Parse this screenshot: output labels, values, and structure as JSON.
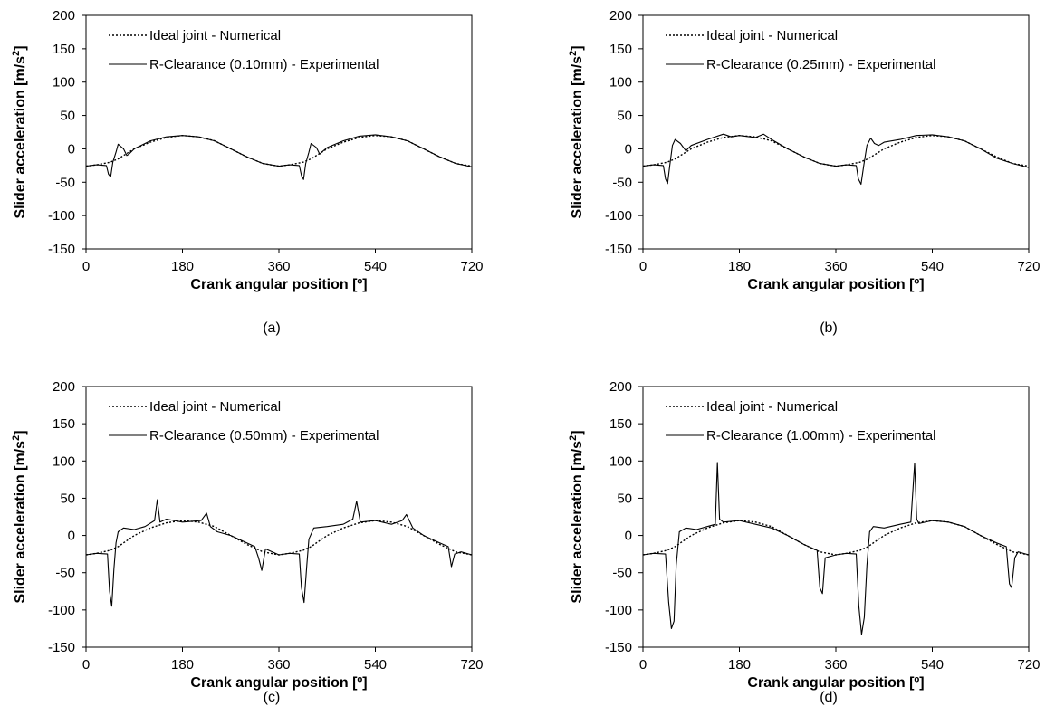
{
  "figure": {
    "panels": [
      {
        "caption": "(a)",
        "clearance_label": "R-Clearance (0.10mm) - Experimental"
      },
      {
        "caption": "(b)",
        "clearance_label": "R-Clearance (0.25mm) - Experimental"
      },
      {
        "caption": "(c)",
        "clearance_label": "R-Clearance (0.50mm) - Experimental"
      },
      {
        "caption": "(d)",
        "clearance_label": "R-Clearance (1.00mm) - Experimental"
      }
    ]
  },
  "chart_data": [
    {
      "type": "line",
      "panel": "(a)",
      "xlabel": "Crank angular position [º]",
      "ylabel_prefix": "Slider acceleration [m/s",
      "ylabel_sup": "2",
      "ylabel_suffix": "]",
      "xlim": [
        0,
        720
      ],
      "ylim": [
        -150,
        200
      ],
      "xticks": [
        0,
        180,
        360,
        540,
        720
      ],
      "yticks": [
        -150,
        -100,
        -50,
        0,
        50,
        100,
        150,
        200
      ],
      "grid": false,
      "legend_position": "top-left",
      "series": [
        {
          "name": "Ideal joint - Numerical",
          "style": "dotted",
          "x": [
            0,
            20,
            45,
            60,
            90,
            120,
            150,
            180,
            210,
            240,
            270,
            300,
            330,
            360,
            380,
            405,
            420,
            450,
            480,
            510,
            540,
            570,
            600,
            630,
            660,
            690,
            720
          ],
          "y": [
            -26,
            -24,
            -20,
            -15,
            0,
            10,
            17,
            20,
            18,
            12,
            0,
            -12,
            -22,
            -26,
            -24,
            -20,
            -15,
            0,
            10,
            17,
            20,
            18,
            12,
            0,
            -12,
            -22,
            -26
          ]
        },
        {
          "name": "R-Clearance (0.10mm) - Experimental",
          "style": "solid",
          "x": [
            0,
            20,
            38,
            42,
            46,
            50,
            56,
            60,
            70,
            76,
            80,
            90,
            120,
            150,
            180,
            210,
            240,
            270,
            300,
            330,
            360,
            380,
            398,
            402,
            406,
            410,
            416,
            420,
            430,
            436,
            440,
            450,
            480,
            510,
            540,
            570,
            600,
            630,
            660,
            690,
            720
          ],
          "y": [
            -26,
            -24,
            -25,
            -38,
            -42,
            -20,
            -5,
            7,
            0,
            -10,
            -8,
            0,
            12,
            18,
            20,
            18,
            12,
            0,
            -12,
            -22,
            -26,
            -24,
            -25,
            -40,
            -46,
            -22,
            -5,
            8,
            2,
            -8,
            -5,
            2,
            12,
            19,
            21,
            18,
            12,
            0,
            -12,
            -22,
            -27
          ]
        }
      ]
    },
    {
      "type": "line",
      "panel": "(b)",
      "xlabel": "Crank angular position [º]",
      "ylabel_prefix": "Slider acceleration [m/s",
      "ylabel_sup": "2",
      "ylabel_suffix": "]",
      "xlim": [
        0,
        720
      ],
      "ylim": [
        -150,
        200
      ],
      "xticks": [
        0,
        180,
        360,
        540,
        720
      ],
      "yticks": [
        -150,
        -100,
        -50,
        0,
        50,
        100,
        150,
        200
      ],
      "grid": false,
      "legend_position": "top-left",
      "series": [
        {
          "name": "Ideal joint - Numerical",
          "style": "dotted",
          "x": [
            0,
            20,
            45,
            60,
            90,
            120,
            150,
            180,
            210,
            240,
            270,
            300,
            330,
            360,
            380,
            405,
            420,
            450,
            480,
            510,
            540,
            570,
            600,
            630,
            660,
            690,
            720
          ],
          "y": [
            -26,
            -24,
            -20,
            -15,
            0,
            10,
            17,
            20,
            18,
            12,
            0,
            -12,
            -22,
            -26,
            -24,
            -20,
            -15,
            0,
            10,
            17,
            20,
            18,
            12,
            0,
            -12,
            -22,
            -26
          ]
        },
        {
          "name": "R-Clearance (0.25mm) - Experimental",
          "style": "solid",
          "x": [
            0,
            20,
            38,
            42,
            46,
            50,
            55,
            60,
            70,
            80,
            90,
            120,
            150,
            165,
            180,
            210,
            225,
            240,
            270,
            300,
            330,
            360,
            380,
            398,
            402,
            407,
            412,
            418,
            425,
            432,
            440,
            450,
            480,
            510,
            540,
            570,
            600,
            630,
            660,
            690,
            720
          ],
          "y": [
            -26,
            -24,
            -25,
            -45,
            -52,
            -25,
            5,
            14,
            8,
            -3,
            5,
            14,
            22,
            18,
            20,
            17,
            22,
            14,
            0,
            -12,
            -22,
            -26,
            -24,
            -25,
            -45,
            -53,
            -25,
            5,
            16,
            8,
            5,
            10,
            14,
            20,
            21,
            18,
            12,
            0,
            -14,
            -22,
            -28
          ]
        }
      ]
    },
    {
      "type": "line",
      "panel": "(c)",
      "xlabel": "Crank angular position [º]",
      "ylabel_prefix": "Slider acceleration [m/s",
      "ylabel_sup": "2",
      "ylabel_suffix": "]",
      "xlim": [
        0,
        720
      ],
      "ylim": [
        -150,
        200
      ],
      "xticks": [
        0,
        180,
        360,
        540,
        720
      ],
      "yticks": [
        -150,
        -100,
        -50,
        0,
        50,
        100,
        150,
        200
      ],
      "grid": false,
      "legend_position": "top-left",
      "series": [
        {
          "name": "Ideal joint - Numerical",
          "style": "dotted",
          "x": [
            0,
            20,
            45,
            60,
            90,
            120,
            150,
            180,
            210,
            240,
            270,
            300,
            330,
            360,
            380,
            405,
            420,
            450,
            480,
            510,
            540,
            570,
            600,
            630,
            660,
            690,
            720
          ],
          "y": [
            -26,
            -24,
            -20,
            -15,
            0,
            10,
            17,
            20,
            18,
            12,
            0,
            -12,
            -22,
            -26,
            -24,
            -20,
            -15,
            0,
            10,
            17,
            20,
            18,
            12,
            0,
            -12,
            -22,
            -26
          ]
        },
        {
          "name": "R-Clearance (0.50mm) - Experimental",
          "style": "solid",
          "x": [
            0,
            20,
            40,
            44,
            48,
            52,
            56,
            60,
            70,
            90,
            110,
            128,
            133,
            138,
            150,
            180,
            215,
            225,
            232,
            245,
            270,
            300,
            315,
            322,
            328,
            335,
            360,
            380,
            398,
            402,
            407,
            412,
            416,
            425,
            450,
            480,
            498,
            505,
            512,
            540,
            570,
            590,
            598,
            610,
            630,
            660,
            676,
            682,
            688,
            700,
            720
          ],
          "y": [
            -26,
            -24,
            -25,
            -75,
            -95,
            -45,
            -10,
            5,
            10,
            8,
            12,
            20,
            48,
            18,
            22,
            18,
            20,
            30,
            12,
            5,
            0,
            -10,
            -15,
            -30,
            -47,
            -18,
            -26,
            -24,
            -25,
            -70,
            -90,
            -40,
            -5,
            10,
            12,
            15,
            22,
            46,
            18,
            20,
            15,
            20,
            28,
            10,
            0,
            -10,
            -15,
            -42,
            -25,
            -22,
            -26
          ]
        }
      ]
    },
    {
      "type": "line",
      "panel": "(d)",
      "xlabel": "Crank angular position [º]",
      "ylabel_prefix": "Slider acceleration [m/s",
      "ylabel_sup": "2",
      "ylabel_suffix": "]",
      "xlim": [
        0,
        720
      ],
      "ylim": [
        -150,
        200
      ],
      "xticks": [
        0,
        180,
        360,
        540,
        720
      ],
      "yticks": [
        -150,
        -100,
        -50,
        0,
        50,
        100,
        150,
        200
      ],
      "grid": false,
      "legend_position": "top-left",
      "series": [
        {
          "name": "Ideal joint - Numerical",
          "style": "dotted",
          "x": [
            0,
            20,
            45,
            60,
            90,
            120,
            150,
            180,
            210,
            240,
            270,
            300,
            330,
            360,
            380,
            405,
            420,
            450,
            480,
            510,
            540,
            570,
            600,
            630,
            660,
            690,
            720
          ],
          "y": [
            -26,
            -24,
            -20,
            -15,
            0,
            10,
            17,
            20,
            18,
            12,
            0,
            -12,
            -22,
            -26,
            -24,
            -20,
            -15,
            0,
            10,
            17,
            20,
            18,
            12,
            0,
            -12,
            -22,
            -26
          ]
        },
        {
          "name": "R-Clearance (1.00mm) - Experimental",
          "style": "solid",
          "x": [
            0,
            20,
            42,
            48,
            53,
            58,
            62,
            68,
            80,
            100,
            120,
            135,
            139,
            143,
            150,
            180,
            210,
            240,
            270,
            300,
            325,
            330,
            335,
            340,
            360,
            380,
            398,
            403,
            408,
            413,
            418,
            423,
            430,
            450,
            480,
            500,
            507,
            511,
            515,
            540,
            570,
            600,
            630,
            660,
            678,
            684,
            688,
            694,
            700,
            720
          ],
          "y": [
            -26,
            -24,
            -25,
            -90,
            -125,
            -115,
            -40,
            5,
            10,
            8,
            12,
            15,
            98,
            22,
            18,
            20,
            15,
            10,
            0,
            -12,
            -20,
            -70,
            -78,
            -30,
            -26,
            -24,
            -25,
            -95,
            -133,
            -110,
            -40,
            5,
            12,
            10,
            15,
            18,
            97,
            22,
            16,
            20,
            18,
            12,
            0,
            -10,
            -15,
            -65,
            -70,
            -30,
            -22,
            -26
          ]
        }
      ]
    }
  ]
}
